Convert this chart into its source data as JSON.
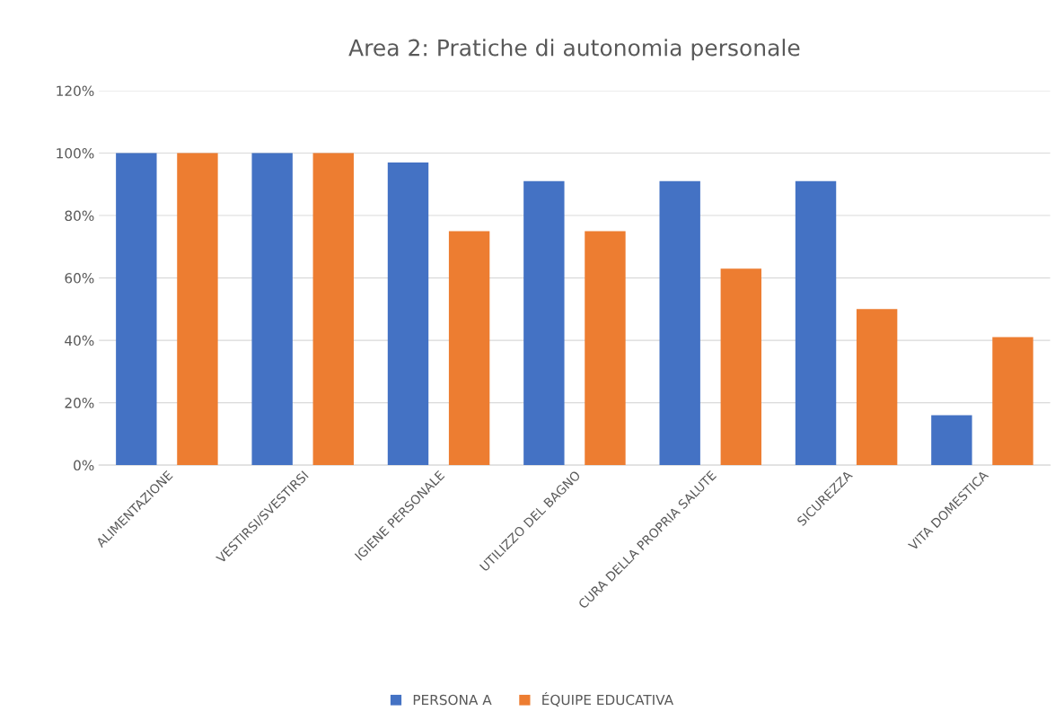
{
  "chart_data": {
    "type": "bar",
    "title": "Area 2: Pratiche di autonomia personale",
    "categories": [
      "ALIMENTAZIONE",
      "VESTIRSI/SVESTIRSI",
      "IGIENE PERSONALE",
      "UTILIZZO DEL BAGNO",
      "CURA DELLA PROPRIA SALUTE",
      "SICUREZZA",
      "VITA DOMESTICA"
    ],
    "series": [
      {
        "name": "PERSONA A",
        "color": "#4472c4",
        "values": [
          100,
          100,
          97,
          91,
          91,
          91,
          16
        ]
      },
      {
        "name": "ÉQUIPE EDUCATIVA",
        "color": "#ed7d31",
        "values": [
          100,
          100,
          75,
          75,
          63,
          50,
          41
        ]
      }
    ],
    "ylim": [
      0,
      120
    ],
    "yticks": [
      {
        "value": 0,
        "label": "0%"
      },
      {
        "value": 20,
        "label": "20%"
      },
      {
        "value": 40,
        "label": "40%"
      },
      {
        "value": 60,
        "label": "60%"
      },
      {
        "value": 80,
        "label": "80%"
      },
      {
        "value": 100,
        "label": "100%"
      },
      {
        "value": 120,
        "label": "120%"
      }
    ],
    "grid": "y",
    "legend": "bottom"
  }
}
